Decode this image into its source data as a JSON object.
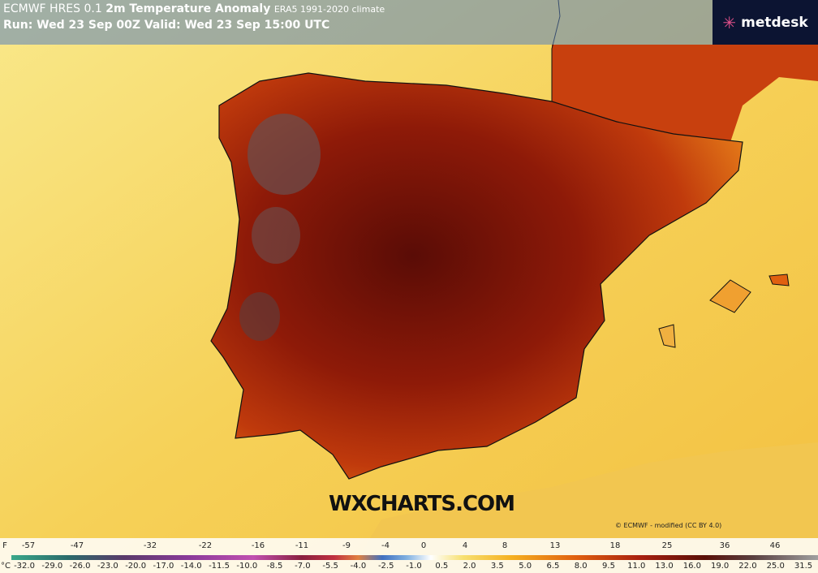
{
  "header": {
    "model": "ECMWF HRES 0.1",
    "title": "2m Temperature Anomaly",
    "climate": "ERA5 1991-2020 climate",
    "run": "Run: Wed 23 Sep 00Z Valid: Wed 23 Sep 15:00 UTC"
  },
  "logo": "metdesk",
  "watermark": "WXCHARTS.COM",
  "credit": "© ECMWF - modified (CC BY 4.0)",
  "legend": {
    "f_unit": "F",
    "f_labels": [
      "-57",
      "-47",
      "-32",
      "-22",
      "-16",
      "-11",
      "-9",
      "-4",
      "0",
      "4",
      "8",
      "13",
      "18",
      "25",
      "36",
      "46"
    ],
    "c_unit": "°C",
    "c_labels": [
      "-32.0",
      "-29.0",
      "-26.0",
      "-23.0",
      "-20.0",
      "-17.0",
      "-14.0",
      "-11.5",
      "-10.0",
      "-8.5",
      "-7.0",
      "-5.5",
      "-4.0",
      "-2.5",
      "-1.0",
      "0.5",
      "2.0",
      "3.5",
      "5.0",
      "6.5",
      "8.0",
      "9.5",
      "11.0",
      "13.0",
      "16.0",
      "19.0",
      "22.0",
      "25.0",
      "31.5"
    ]
  }
}
